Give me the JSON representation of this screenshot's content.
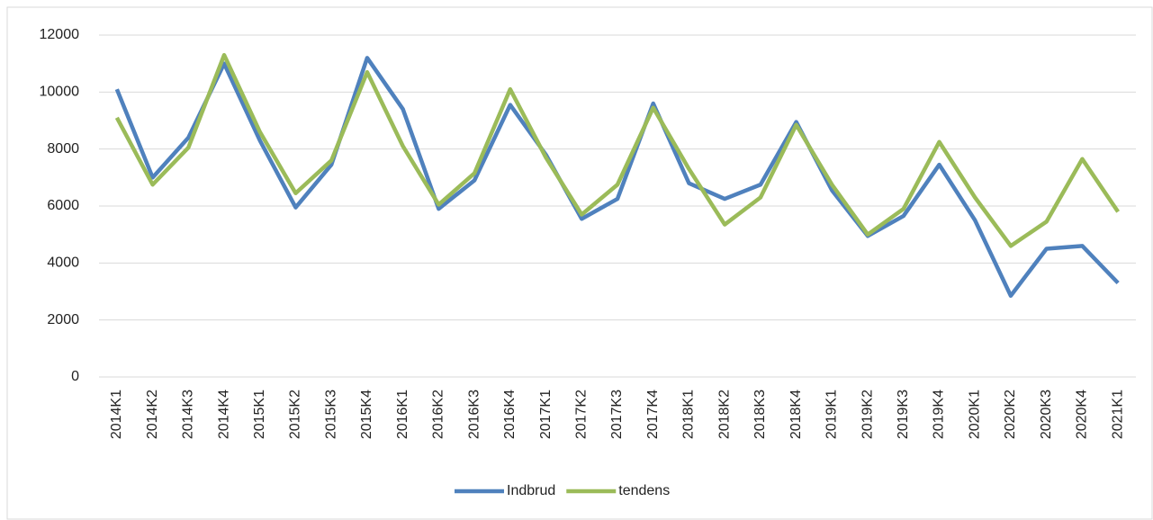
{
  "chart_data": {
    "type": "line",
    "categories": [
      "2014K1",
      "2014K2",
      "2014K3",
      "2014K4",
      "2015K1",
      "2015K2",
      "2015K3",
      "2015K4",
      "2016K1",
      "2016K2",
      "2016K3",
      "2016K4",
      "2017K1",
      "2017K2",
      "2017K3",
      "2017K4",
      "2018K1",
      "2018K2",
      "2018K3",
      "2018K4",
      "2019K1",
      "2019K2",
      "2019K3",
      "2019K4",
      "2020K1",
      "2020K2",
      "2020K3",
      "2020K4",
      "2021K1"
    ],
    "series": [
      {
        "name": "Indbrud",
        "color": "#4f81bd",
        "values": [
          10100,
          7000,
          8400,
          11000,
          8300,
          5950,
          7450,
          11200,
          9400,
          5900,
          6900,
          9550,
          7800,
          5550,
          6250,
          9600,
          6800,
          6250,
          6750,
          8950,
          6550,
          4950,
          5650,
          7450,
          5500,
          2850,
          4500,
          4600,
          3300
        ]
      },
      {
        "name": "tendens",
        "color": "#9bbb59",
        "values": [
          9100,
          6750,
          8050,
          11300,
          8600,
          6450,
          7600,
          10700,
          8100,
          6050,
          7150,
          10100,
          7700,
          5700,
          6750,
          9450,
          7300,
          5350,
          6300,
          8850,
          6750,
          5000,
          5900,
          8250,
          6300,
          4600,
          5450,
          7650,
          5800
        ]
      }
    ],
    "ylim": [
      0,
      12000
    ],
    "yticks": [
      0,
      2000,
      4000,
      6000,
      8000,
      10000,
      12000
    ],
    "grid": true,
    "legend": "bottom"
  }
}
